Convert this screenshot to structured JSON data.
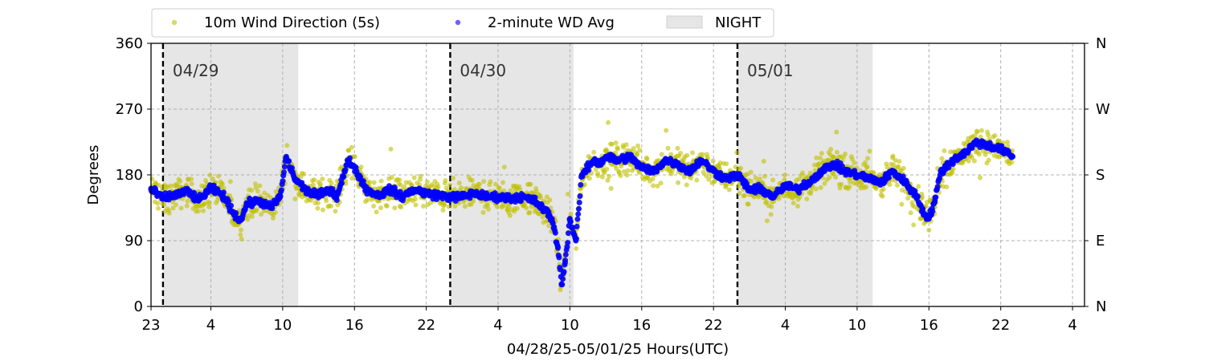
{
  "chart_data": {
    "type": "scatter",
    "xlabel": "04/28/25-05/01/25  Hours(UTC)",
    "ylabel": "Degrees",
    "xlim": [
      23,
      101
    ],
    "ylim": [
      0,
      360
    ],
    "grid": true,
    "legend_placement": "top-left",
    "x_ticks": [
      {
        "value": 23,
        "label": "23"
      },
      {
        "value": 28,
        "label": "4"
      },
      {
        "value": 34,
        "label": "10"
      },
      {
        "value": 40,
        "label": "16"
      },
      {
        "value": 46,
        "label": "22"
      },
      {
        "value": 52,
        "label": "4"
      },
      {
        "value": 58,
        "label": "10"
      },
      {
        "value": 64,
        "label": "16"
      },
      {
        "value": 70,
        "label": "22"
      },
      {
        "value": 76,
        "label": "4"
      },
      {
        "value": 82,
        "label": "10"
      },
      {
        "value": 88,
        "label": "16"
      },
      {
        "value": 94,
        "label": "22"
      },
      {
        "value": 100,
        "label": "4"
      }
    ],
    "y_ticks": [
      {
        "value": 0,
        "label": "0"
      },
      {
        "value": 90,
        "label": "90"
      },
      {
        "value": 180,
        "label": "180"
      },
      {
        "value": 270,
        "label": "270"
      },
      {
        "value": 360,
        "label": "360"
      }
    ],
    "y2_ticks": [
      {
        "value": 0,
        "label": "N"
      },
      {
        "value": 90,
        "label": "E"
      },
      {
        "value": 180,
        "label": "S"
      },
      {
        "value": 270,
        "label": "W"
      },
      {
        "value": 360,
        "label": "N"
      }
    ],
    "day_markers": [
      {
        "x": 24,
        "label": "04/29"
      },
      {
        "x": 48,
        "label": "04/30"
      },
      {
        "x": 72,
        "label": "05/01"
      }
    ],
    "night_spans": [
      {
        "start": 24,
        "end": 35.3
      },
      {
        "start": 48,
        "end": 58.3
      },
      {
        "start": 72,
        "end": 83.3
      }
    ],
    "legend": [
      {
        "label": "10m Wind Direction (5s)",
        "kind": "marker",
        "color": "#bfbf00"
      },
      {
        "label": "2-minute WD Avg",
        "kind": "marker",
        "color": "#0000ff"
      },
      {
        "label": "NIGHT",
        "kind": "patch",
        "color": "#e6e6e6"
      }
    ],
    "series": [
      {
        "name": "10m Wind Direction (5s)",
        "color": "#bfbf00",
        "spread": 30,
        "x": [
          23,
          24,
          25,
          26,
          27,
          28,
          29,
          30,
          30.5,
          31,
          32,
          33,
          33.8,
          34.3,
          35,
          36,
          37,
          38,
          38.5,
          39.5,
          40,
          41,
          42,
          43,
          44,
          45,
          46,
          47,
          48,
          49,
          50,
          51,
          52,
          53,
          54,
          55,
          56,
          56.5,
          57,
          57.3,
          57.6,
          58,
          58.5,
          59,
          60,
          60.5,
          61,
          62,
          63,
          64,
          65,
          66,
          67,
          68,
          69,
          70,
          71,
          72,
          73,
          74,
          75,
          76,
          77,
          78,
          79,
          80,
          81,
          82,
          83,
          84,
          85,
          86,
          87,
          87.5,
          88,
          88.5,
          89,
          90,
          91,
          92,
          93,
          94,
          95
        ],
        "values": [
          160,
          148,
          152,
          158,
          145,
          162,
          152,
          125,
          118,
          140,
          145,
          135,
          150,
          205,
          175,
          158,
          152,
          160,
          150,
          200,
          190,
          160,
          152,
          160,
          150,
          160,
          155,
          152,
          150,
          150,
          155,
          150,
          150,
          148,
          150,
          145,
          130,
          120,
          80,
          30,
          60,
          120,
          90,
          180,
          200,
          195,
          205,
          200,
          205,
          190,
          185,
          200,
          195,
          185,
          200,
          185,
          175,
          180,
          160,
          160,
          150,
          165,
          160,
          170,
          185,
          195,
          185,
          180,
          175,
          170,
          185,
          170,
          150,
          130,
          120,
          145,
          185,
          200,
          210,
          225,
          220,
          215,
          205
        ]
      },
      {
        "name": "2-minute WD Avg",
        "color": "#0000ff",
        "spread": 8,
        "x": [
          23,
          24,
          25,
          26,
          27,
          28,
          29,
          30,
          30.5,
          31,
          32,
          33,
          33.8,
          34.3,
          35,
          36,
          37,
          38,
          38.5,
          39.5,
          40,
          41,
          42,
          43,
          44,
          45,
          46,
          47,
          48,
          49,
          50,
          51,
          52,
          53,
          54,
          55,
          56,
          56.5,
          57,
          57.3,
          57.6,
          58,
          58.5,
          59,
          60,
          60.5,
          61,
          62,
          63,
          64,
          65,
          66,
          67,
          68,
          69,
          70,
          71,
          72,
          73,
          74,
          75,
          76,
          77,
          78,
          79,
          80,
          81,
          82,
          83,
          84,
          85,
          86,
          87,
          87.5,
          88,
          88.5,
          89,
          90,
          91,
          92,
          93,
          94,
          95
        ],
        "values": [
          160,
          148,
          152,
          158,
          145,
          162,
          152,
          125,
          118,
          140,
          145,
          135,
          150,
          205,
          175,
          158,
          152,
          160,
          150,
          200,
          190,
          160,
          152,
          160,
          150,
          160,
          155,
          152,
          150,
          150,
          155,
          150,
          150,
          148,
          150,
          145,
          130,
          120,
          80,
          30,
          60,
          120,
          90,
          180,
          200,
          195,
          205,
          200,
          205,
          190,
          185,
          200,
          195,
          185,
          200,
          185,
          175,
          180,
          160,
          160,
          150,
          165,
          160,
          170,
          185,
          195,
          185,
          180,
          175,
          170,
          185,
          170,
          150,
          130,
          120,
          145,
          185,
          200,
          210,
          225,
          220,
          215,
          205
        ]
      }
    ]
  }
}
